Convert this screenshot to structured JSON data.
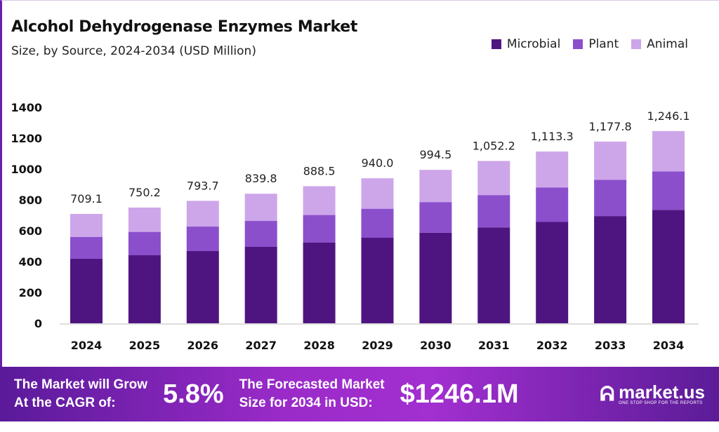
{
  "chart_data": {
    "type": "bar",
    "stacked": true,
    "title": "Alcohol Dehydrogenase  Enzymes Market",
    "subtitle": "Size, by Source, 2024-2034 (USD Million)",
    "categories": [
      "2024",
      "2025",
      "2026",
      "2027",
      "2028",
      "2029",
      "2030",
      "2031",
      "2032",
      "2033",
      "2034"
    ],
    "series": [
      {
        "name": "Microbial",
        "color": "#4e1580",
        "values": [
          418.4,
          442.6,
          468.3,
          495.5,
          524.2,
          554.6,
          586.8,
          620.8,
          656.8,
          694.9,
          735.2
        ]
      },
      {
        "name": "Plant",
        "color": "#8b4fcc",
        "values": [
          141.8,
          150.0,
          158.7,
          168.0,
          177.7,
          188.0,
          198.9,
          210.4,
          222.7,
          235.6,
          249.2
        ]
      },
      {
        "name": "Animal",
        "color": "#cda6ea",
        "values": [
          148.9,
          157.6,
          166.7,
          176.3,
          186.6,
          197.4,
          208.8,
          221.0,
          233.8,
          247.3,
          261.7
        ]
      }
    ],
    "totals": [
      "709.1",
      "750.2",
      "793.7",
      "839.8",
      "888.5",
      "940.0",
      "994.5",
      "1,052.2",
      "1,113.3",
      "1,177.8",
      "1,246.1"
    ],
    "ylim": [
      0,
      1400
    ],
    "yticks": [
      "0",
      "200",
      "400",
      "600",
      "800",
      "1000",
      "1200",
      "1400"
    ],
    "grid": false,
    "legend_position": "top-right"
  },
  "banner": {
    "cagr_label_1": "The Market will Grow",
    "cagr_label_2": "At the CAGR of:",
    "cagr_value": "5.8%",
    "forecast_label_1": "The Forecasted Market",
    "forecast_label_2": "Size for 2034 in USD:",
    "forecast_value": "$1246.1M",
    "logo_text": "market.us",
    "logo_tagline": "ONE STOP SHOP FOR THE REPORTS"
  }
}
